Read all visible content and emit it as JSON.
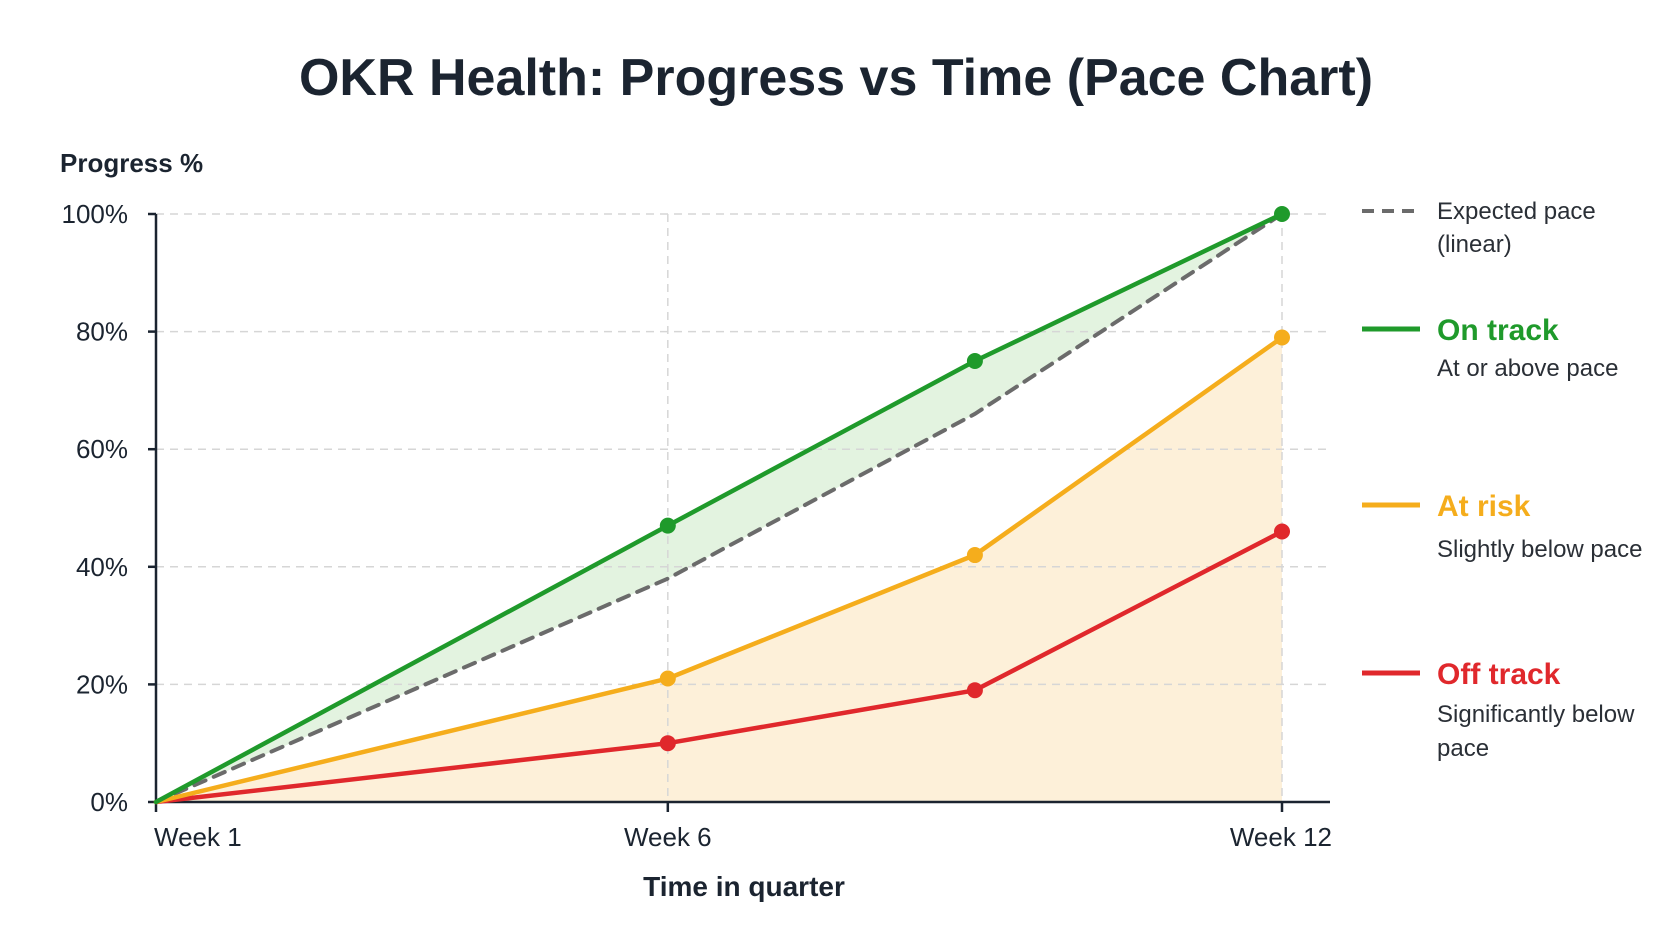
{
  "chart_data": {
    "type": "line",
    "title": "OKR Health: Progress vs Time (Pace Chart)",
    "ylabel": "Progress %",
    "xlabel": "Time in quarter",
    "ylim": [
      0,
      100
    ],
    "xlim": [
      1,
      12
    ],
    "y_ticks": [
      0,
      20,
      40,
      60,
      80,
      100
    ],
    "y_tick_labels": [
      "0%",
      "20%",
      "40%",
      "60%",
      "80%",
      "100%"
    ],
    "x_ticks": [
      1,
      6,
      12
    ],
    "x_tick_labels": [
      "Week 1",
      "Week 6",
      "Week 12"
    ],
    "grid": true,
    "legend_position": "right",
    "expected": {
      "name": "Expected pace",
      "description": "(linear)",
      "color": "#6b6b6b",
      "dashed": true,
      "x": [
        1,
        6,
        9,
        12
      ],
      "values": [
        0,
        38,
        66,
        100
      ]
    },
    "series": [
      {
        "name": "On track",
        "description": "At or above pace",
        "color": "#1f9a2b",
        "fill": "#e3f3e0",
        "fill_mode": "to_expected",
        "x": [
          1,
          6,
          9,
          12
        ],
        "values": [
          0,
          47,
          75,
          100
        ]
      },
      {
        "name": "At risk",
        "description": "Slightly below pace",
        "color": "#f5ad1c",
        "fill": "#fdf0d9",
        "fill_mode": "to_zero",
        "x": [
          1,
          6,
          9,
          12
        ],
        "values": [
          0,
          21,
          42,
          79
        ]
      },
      {
        "name": "Off track",
        "description": "Significantly below pace",
        "color": "#e0282c",
        "fill": "#fbe1e3",
        "fill_mode": "to_zero",
        "x": [
          1,
          6,
          9,
          12
        ],
        "values": [
          0,
          10,
          19,
          46
        ]
      }
    ]
  }
}
